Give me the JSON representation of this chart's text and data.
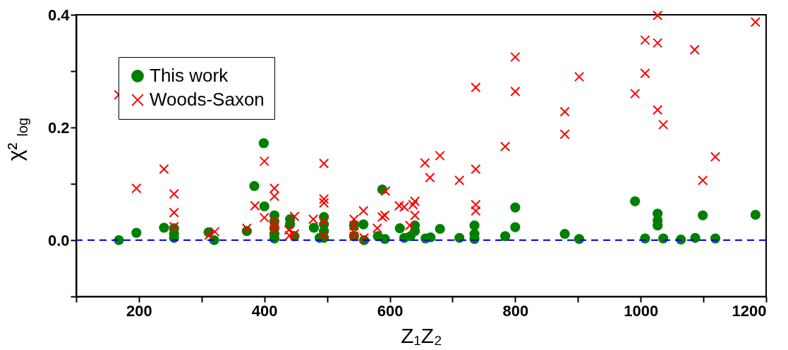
{
  "chart_data": {
    "type": "scatter",
    "xlabel": "Z₁Z₂",
    "ylabel": "χ²$_{log}$",
    "xlim": [
      100,
      1200
    ],
    "xticks": [
      {
        "value": 100,
        "label": null
      },
      200,
      {
        "value": 300,
        "label": null
      },
      400,
      {
        "value": 500,
        "label": null
      },
      600,
      {
        "value": 700,
        "label": null
      },
      800,
      {
        "value": 900,
        "label": null
      },
      1000,
      {
        "value": 1100,
        "label": null
      },
      1200
    ],
    "ylim": [
      -0.1,
      0.4
    ],
    "yticks": [
      {
        "value": -0.1,
        "label": null
      },
      {
        "value": 0.0,
        "label": "0.0"
      },
      {
        "value": 0.1,
        "label": null
      },
      0.2,
      {
        "value": 0.3,
        "label": null
      },
      0.4
    ],
    "grid": false,
    "legend": "top left",
    "ref_lines": [
      {
        "axis": "y",
        "value": 0,
        "label": null,
        "color": "#0000ff",
        "line_style": "dashed"
      }
    ],
    "series": [
      {
        "name": "This work",
        "color": "#008000",
        "marker": "circle",
        "x": [
          168,
          196,
          240,
          256,
          256,
          256,
          311,
          320,
          372,
          384,
          399,
          400,
          416,
          416,
          416,
          416,
          416,
          441,
          441,
          448,
          479,
          488,
          495,
          495,
          495,
          495,
          543,
          543,
          558,
          559,
          581,
          588,
          592,
          616,
          623,
          633,
          640,
          640,
          657,
          665,
          680,
          711,
          735,
          735,
          735,
          784,
          800,
          800,
          879,
          902,
          991,
          1007,
          1027,
          1027,
          1027,
          1036,
          1064,
          1087,
          1099,
          1119,
          1183
        ],
        "values": [
          0.0,
          0.013,
          0.022,
          0.021,
          0.011,
          0.004,
          0.014,
          0.0,
          0.016,
          0.096,
          0.172,
          0.06,
          0.044,
          0.033,
          0.021,
          0.011,
          0.003,
          0.037,
          0.028,
          0.007,
          0.022,
          0.004,
          0.041,
          0.028,
          0.016,
          0.004,
          0.026,
          0.007,
          0.028,
          0.0,
          0.007,
          0.09,
          0.002,
          0.021,
          0.004,
          0.007,
          0.026,
          0.016,
          0.003,
          0.005,
          0.02,
          0.004,
          0.026,
          0.011,
          0.002,
          0.007,
          0.058,
          0.023,
          0.011,
          0.002,
          0.069,
          0.003,
          0.047,
          0.035,
          0.026,
          0.003,
          0.001,
          0.004,
          0.044,
          0.003,
          0.045
        ]
      },
      {
        "name": "Woods-Saxon",
        "color": "#ff0000",
        "marker": "cross",
        "x": [
          168,
          196,
          240,
          256,
          256,
          256,
          312,
          321,
          372,
          385,
          400,
          400,
          416,
          416,
          416,
          416,
          416,
          439,
          448,
          448,
          440,
          478,
          495,
          495,
          495,
          495,
          495,
          543,
          543,
          543,
          543,
          558,
          559,
          580,
          588,
          593,
          592,
          615,
          623,
          632,
          637,
          640,
          640,
          656,
          664,
          680,
          711,
          737,
          737,
          737,
          737,
          784,
          800,
          800,
          879,
          879,
          902,
          991,
          1007,
          1007,
          1027,
          1027,
          1027,
          1036,
          1086,
          1099,
          1119,
          1183
        ],
        "values": [
          0.258,
          0.092,
          0.126,
          0.082,
          0.049,
          0.024,
          0.009,
          0.015,
          0.021,
          0.061,
          0.14,
          0.04,
          0.092,
          0.078,
          0.035,
          0.026,
          0.018,
          0.018,
          0.042,
          0.011,
          0.008,
          0.037,
          0.136,
          0.073,
          0.066,
          0.033,
          0.008,
          0.037,
          0.026,
          0.014,
          0.007,
          0.052,
          0.004,
          0.021,
          0.041,
          0.087,
          0.044,
          0.061,
          0.059,
          0.026,
          0.063,
          0.044,
          0.069,
          0.137,
          0.111,
          0.15,
          0.106,
          0.126,
          0.063,
          0.052,
          0.271,
          0.166,
          0.325,
          0.264,
          0.228,
          0.188,
          0.29,
          0.26,
          0.355,
          0.296,
          0.399,
          0.35,
          0.231,
          0.205,
          0.338,
          0.106,
          0.148,
          0.387
        ]
      }
    ]
  }
}
